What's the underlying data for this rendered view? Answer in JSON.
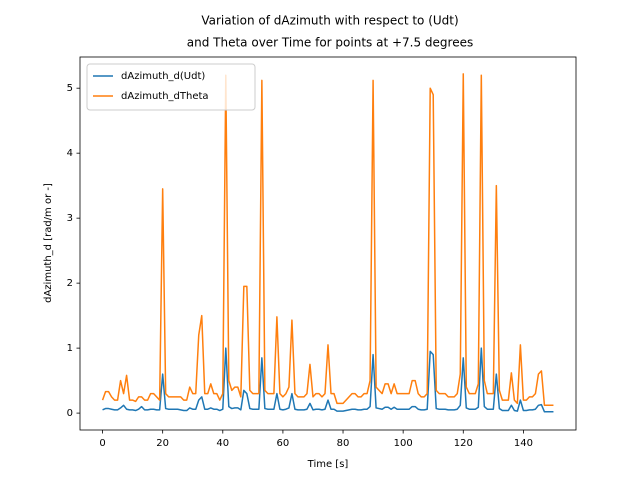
{
  "chart_data": {
    "type": "line",
    "title": [
      "Variation of dAzimuth with respect to (Udt)",
      "and Theta over Time for points at +7.5 degrees"
    ],
    "xlabel": "Time [s]",
    "ylabel": "dAzimuth_d [rad/m or -]",
    "xlim": [
      -7.5,
      157.5
    ],
    "ylim": [
      -0.26,
      5.48
    ],
    "xticks": [
      0,
      20,
      40,
      60,
      80,
      100,
      120,
      140
    ],
    "yticks": [
      0,
      1,
      2,
      3,
      4,
      5
    ],
    "legend": "upper left",
    "x": [
      0,
      1,
      2,
      3,
      4,
      5,
      6,
      7,
      8,
      9,
      10,
      11,
      12,
      13,
      14,
      15,
      16,
      17,
      18,
      19,
      20,
      21,
      22,
      23,
      24,
      25,
      26,
      27,
      28,
      29,
      30,
      31,
      32,
      33,
      34,
      35,
      36,
      37,
      38,
      39,
      40,
      41,
      42,
      43,
      44,
      45,
      46,
      47,
      48,
      49,
      50,
      51,
      52,
      53,
      54,
      55,
      56,
      57,
      58,
      59,
      60,
      61,
      62,
      63,
      64,
      65,
      66,
      67,
      68,
      69,
      70,
      71,
      72,
      73,
      74,
      75,
      76,
      77,
      78,
      79,
      80,
      81,
      82,
      83,
      84,
      85,
      86,
      87,
      88,
      89,
      90,
      91,
      92,
      93,
      94,
      95,
      96,
      97,
      98,
      99,
      100,
      101,
      102,
      103,
      104,
      105,
      106,
      107,
      108,
      109,
      110,
      111,
      112,
      113,
      114,
      115,
      116,
      117,
      118,
      119,
      120,
      121,
      122,
      123,
      124,
      125,
      126,
      127,
      128,
      129,
      130,
      131,
      132,
      133,
      134,
      135,
      136,
      137,
      138,
      139,
      140,
      141,
      142,
      143,
      144,
      145,
      146,
      147,
      148,
      149,
      150
    ],
    "series": [
      {
        "name": "dAzimuth_d(Udt)",
        "color": "#1f77b4",
        "values": [
          0.05,
          0.07,
          0.07,
          0.06,
          0.05,
          0.05,
          0.08,
          0.12,
          0.06,
          0.05,
          0.05,
          0.04,
          0.06,
          0.1,
          0.05,
          0.05,
          0.06,
          0.06,
          0.05,
          0.05,
          0.6,
          0.07,
          0.06,
          0.06,
          0.06,
          0.06,
          0.05,
          0.04,
          0.04,
          0.08,
          0.06,
          0.06,
          0.2,
          0.25,
          0.06,
          0.06,
          0.08,
          0.06,
          0.06,
          0.04,
          0.06,
          1.0,
          0.1,
          0.07,
          0.08,
          0.08,
          0.05,
          0.35,
          0.3,
          0.07,
          0.06,
          0.06,
          0.06,
          0.85,
          0.07,
          0.06,
          0.06,
          0.06,
          0.3,
          0.06,
          0.05,
          0.06,
          0.08,
          0.3,
          0.06,
          0.05,
          0.05,
          0.05,
          0.06,
          0.15,
          0.05,
          0.06,
          0.06,
          0.05,
          0.06,
          0.2,
          0.06,
          0.06,
          0.03,
          0.03,
          0.03,
          0.04,
          0.05,
          0.06,
          0.06,
          0.05,
          0.05,
          0.06,
          0.06,
          0.1,
          0.9,
          0.08,
          0.07,
          0.06,
          0.09,
          0.09,
          0.06,
          0.09,
          0.06,
          0.06,
          0.06,
          0.06,
          0.06,
          0.1,
          0.1,
          0.06,
          0.05,
          0.05,
          0.06,
          0.95,
          0.9,
          0.07,
          0.06,
          0.06,
          0.06,
          0.05,
          0.05,
          0.05,
          0.06,
          0.12,
          0.85,
          0.08,
          0.06,
          0.06,
          0.06,
          0.09,
          1.0,
          0.1,
          0.06,
          0.06,
          0.06,
          0.6,
          0.07,
          0.04,
          0.04,
          0.04,
          0.12,
          0.04,
          0.03,
          0.2,
          0.04,
          0.04,
          0.05,
          0.05,
          0.06,
          0.12,
          0.13,
          0.02,
          0.02,
          0.02,
          0.02
        ]
      },
      {
        "name": "dAzimuth_dTheta",
        "color": "#ff7f0e",
        "values": [
          0.2,
          0.33,
          0.33,
          0.25,
          0.2,
          0.2,
          0.5,
          0.3,
          0.58,
          0.2,
          0.2,
          0.18,
          0.25,
          0.25,
          0.2,
          0.2,
          0.3,
          0.3,
          0.25,
          0.2,
          3.45,
          0.3,
          0.25,
          0.25,
          0.25,
          0.25,
          0.25,
          0.2,
          0.2,
          0.4,
          0.3,
          0.3,
          1.2,
          1.5,
          0.3,
          0.3,
          0.45,
          0.3,
          0.3,
          0.2,
          0.3,
          5.2,
          0.5,
          0.35,
          0.4,
          0.4,
          0.25,
          1.95,
          1.95,
          0.35,
          0.3,
          0.3,
          0.3,
          5.12,
          0.35,
          0.3,
          0.3,
          0.3,
          1.48,
          0.3,
          0.25,
          0.3,
          0.4,
          1.43,
          0.3,
          0.25,
          0.25,
          0.25,
          0.3,
          0.75,
          0.25,
          0.3,
          0.3,
          0.25,
          0.3,
          1.05,
          0.3,
          0.3,
          0.15,
          0.15,
          0.15,
          0.2,
          0.25,
          0.3,
          0.3,
          0.25,
          0.25,
          0.3,
          0.3,
          0.5,
          5.12,
          0.4,
          0.35,
          0.3,
          0.45,
          0.45,
          0.3,
          0.45,
          0.3,
          0.3,
          0.3,
          0.3,
          0.3,
          0.5,
          0.5,
          0.3,
          0.25,
          0.25,
          0.3,
          5.0,
          4.9,
          0.35,
          0.3,
          0.3,
          0.3,
          0.25,
          0.25,
          0.25,
          0.3,
          0.6,
          5.22,
          0.4,
          0.3,
          0.3,
          0.3,
          0.45,
          5.2,
          0.5,
          0.3,
          0.3,
          0.3,
          3.5,
          0.35,
          0.2,
          0.2,
          0.2,
          0.62,
          0.2,
          0.15,
          1.05,
          0.2,
          0.2,
          0.25,
          0.25,
          0.3,
          0.6,
          0.65,
          0.12,
          0.12,
          0.12,
          0.12
        ]
      }
    ]
  }
}
